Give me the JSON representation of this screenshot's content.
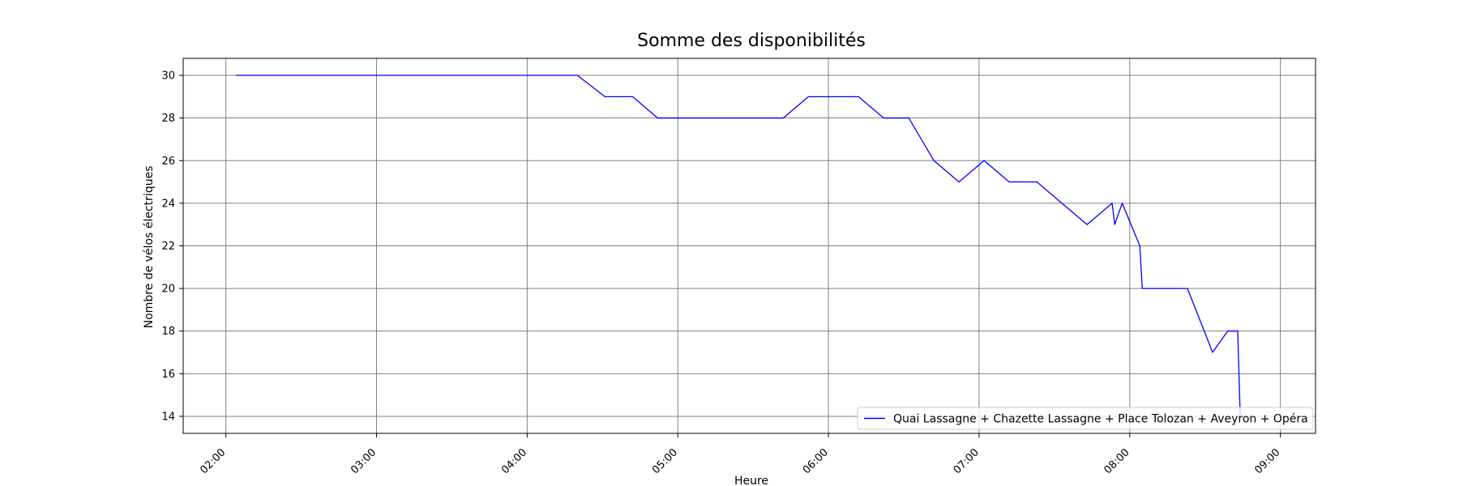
{
  "chart_data": {
    "type": "line",
    "title": "Somme des disponibilités",
    "xlabel": "Heure",
    "ylabel": "Nombre de vélos électriques",
    "x_ticks": [
      "02:00",
      "03:00",
      "04:00",
      "05:00",
      "06:00",
      "07:00",
      "08:00",
      "09:00"
    ],
    "y_ticks": [
      14,
      16,
      18,
      20,
      22,
      24,
      26,
      28,
      30
    ],
    "xlim": [
      "01:43",
      "09:14"
    ],
    "ylim": [
      13.2,
      30.8
    ],
    "grid": true,
    "legend_position": "lower right",
    "colors": {
      "series": "#0000ff",
      "grid": "#808080"
    },
    "series": [
      {
        "name": "Quai Lassagne + Chazette Lassagne + Place Tolozan + Aveyron + Opéra",
        "points": [
          [
            "02:04",
            30
          ],
          [
            "04:20",
            30
          ],
          [
            "04:31",
            29
          ],
          [
            "04:42",
            29
          ],
          [
            "04:52",
            28
          ],
          [
            "05:42",
            28
          ],
          [
            "05:52",
            29
          ],
          [
            "06:12",
            29
          ],
          [
            "06:22",
            28
          ],
          [
            "06:32",
            28
          ],
          [
            "06:42",
            26
          ],
          [
            "06:52",
            25
          ],
          [
            "07:02",
            26
          ],
          [
            "07:12",
            25
          ],
          [
            "07:23",
            25
          ],
          [
            "07:43",
            23
          ],
          [
            "07:53",
            24
          ],
          [
            "07:54",
            23
          ],
          [
            "07:57",
            24
          ],
          [
            "08:04",
            22
          ],
          [
            "08:05",
            20
          ],
          [
            "08:23",
            20
          ],
          [
            "08:33",
            17
          ],
          [
            "08:39",
            18
          ],
          [
            "08:43",
            18
          ],
          [
            "08:44",
            14
          ]
        ]
      }
    ]
  }
}
